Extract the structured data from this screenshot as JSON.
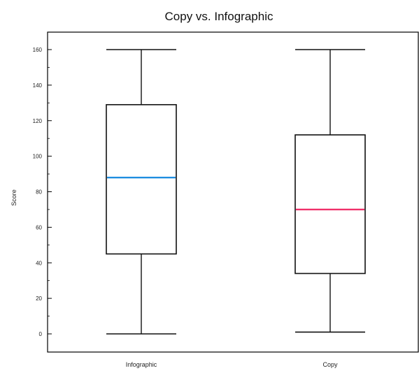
{
  "chart_data": {
    "type": "box",
    "title": "Copy vs. Infographic",
    "ylabel": "Score",
    "xlabel": "",
    "ylim": [
      -10,
      170
    ],
    "yticks": [
      0,
      20,
      40,
      60,
      80,
      100,
      120,
      140,
      160
    ],
    "grid": false,
    "categories": [
      "Infographic",
      "Copy"
    ],
    "boxes": [
      {
        "name": "Infographic",
        "min": 0,
        "q1": 45,
        "median": 88,
        "q3": 129,
        "max": 160,
        "median_color": "#1f8ee0"
      },
      {
        "name": "Copy",
        "min": 1,
        "q1": 34,
        "median": 70,
        "q3": 112,
        "max": 160,
        "median_color": "#f0306a"
      }
    ]
  }
}
